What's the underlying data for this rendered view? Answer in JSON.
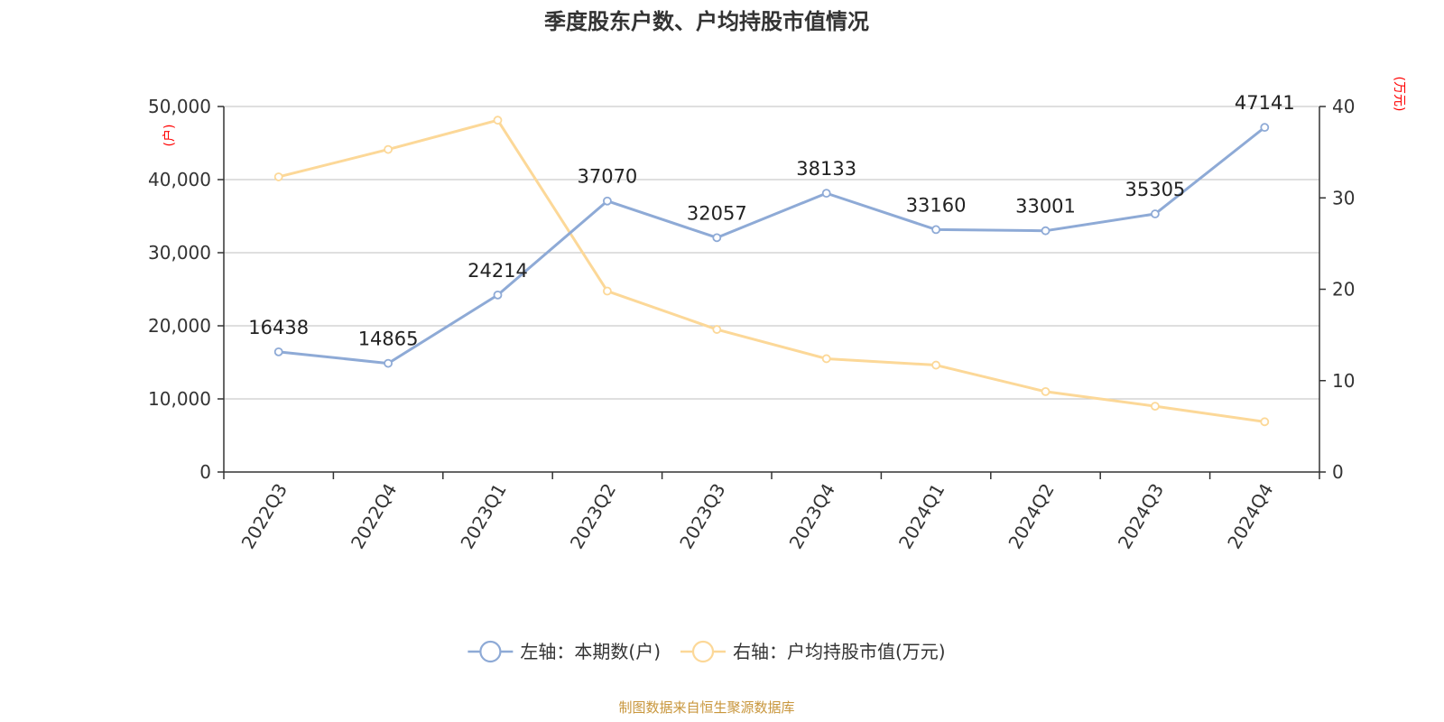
{
  "chart_data": {
    "type": "line",
    "title": "季度股东户数、户均持股市值情况",
    "categories": [
      "2022Q3",
      "2022Q4",
      "2023Q1",
      "2023Q2",
      "2023Q3",
      "2023Q4",
      "2024Q1",
      "2024Q2",
      "2024Q3",
      "2024Q4"
    ],
    "y_left": {
      "unit": "(户)",
      "range": [
        0,
        50000
      ],
      "ticks": [
        "0",
        "10,000",
        "20,000",
        "30,000",
        "40,000",
        "50,000"
      ]
    },
    "y_right": {
      "unit": "(万元)",
      "range": [
        0,
        40
      ],
      "ticks": [
        "0",
        "10",
        "20",
        "30",
        "40"
      ]
    },
    "series": [
      {
        "name": "左轴：本期数(户)",
        "axis": "left",
        "color": "#8eaad6",
        "values": [
          16438,
          14865,
          24214,
          37070,
          32057,
          38133,
          33160,
          33001,
          35305,
          47141
        ],
        "labels": [
          "16438",
          "14865",
          "24214",
          "37070",
          "32057",
          "38133",
          "33160",
          "33001",
          "35305",
          "47141"
        ]
      },
      {
        "name": "右轴：户均持股市值(万元)",
        "axis": "right",
        "color": "#fcd898",
        "values": [
          32.3,
          35.3,
          38.5,
          19.8,
          15.6,
          12.4,
          11.7,
          8.8,
          7.2,
          5.5
        ]
      }
    ],
    "grid": true,
    "legend_position": "bottom-center"
  },
  "source": "制图数据来自恒生聚源数据库"
}
